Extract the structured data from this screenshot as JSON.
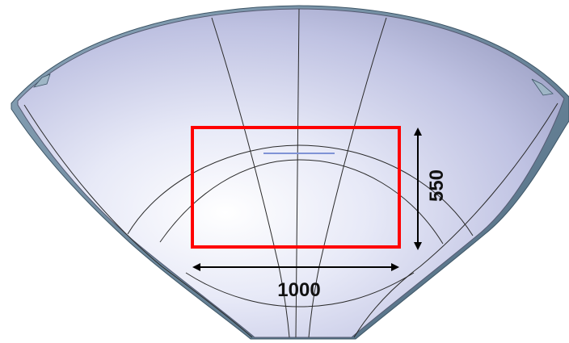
{
  "diagram": {
    "dimensions": {
      "width_label": "1000",
      "height_label": "550"
    },
    "colors": {
      "surface_light": "#f4f5fc",
      "surface_mid": "#c9cce8",
      "surface_dark": "#8f93b8",
      "edge_band": "#6f8aa0",
      "panel_lines": "#2a2a2a",
      "highlight_box": "#ff0000",
      "dimension_arrows": "#000000",
      "seam_mark": "#7f93d6"
    }
  }
}
